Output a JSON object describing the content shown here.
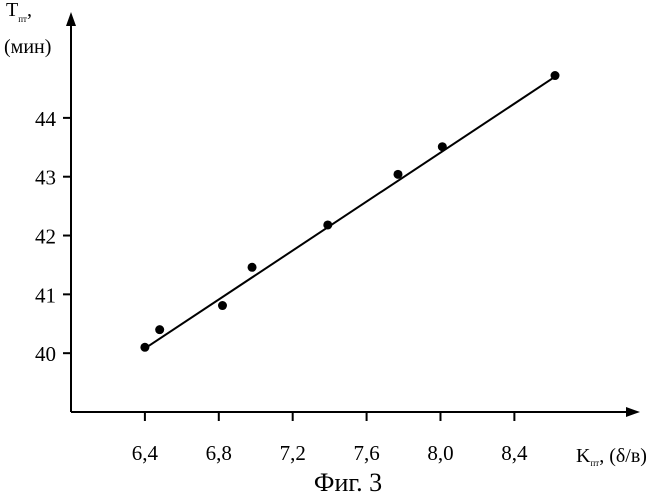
{
  "chart_data": {
    "type": "scatter",
    "caption": "Фиг. 3",
    "xlabel": {
      "main": "K",
      "sub": "пт",
      "unit": ", (δ/в)"
    },
    "ylabel": {
      "main": "T",
      "sub": "пт",
      "unit_line1": ",",
      "unit_line2": "(мин)"
    },
    "xlim": [
      6.0,
      9.08
    ],
    "ylim": [
      39.0,
      45.8
    ],
    "x_ticks": [
      6.4,
      6.8,
      7.2,
      7.6,
      8.0,
      8.4
    ],
    "x_tick_labels": [
      "6,4",
      "6,8",
      "7,2",
      "7,6",
      "8,0",
      "8,4"
    ],
    "y_ticks": [
      40,
      41,
      42,
      43,
      44
    ],
    "y_tick_labels": [
      "40",
      "41",
      "42",
      "43",
      "44"
    ],
    "grid": false,
    "points": [
      {
        "x": 6.4,
        "y": 40.1
      },
      {
        "x": 6.48,
        "y": 40.4
      },
      {
        "x": 6.82,
        "y": 40.81
      },
      {
        "x": 6.98,
        "y": 41.46
      },
      {
        "x": 7.39,
        "y": 42.18
      },
      {
        "x": 7.77,
        "y": 43.04
      },
      {
        "x": 8.01,
        "y": 43.51
      },
      {
        "x": 8.62,
        "y": 44.72
      }
    ],
    "fit_line": {
      "x": [
        6.4,
        8.62
      ],
      "y": [
        40.08,
        44.7
      ]
    }
  }
}
